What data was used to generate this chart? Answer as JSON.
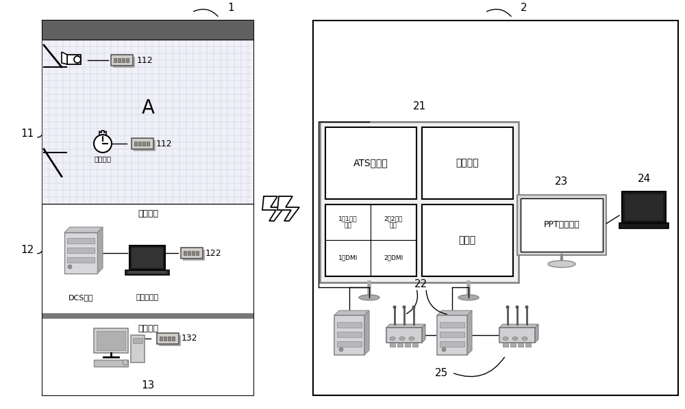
{
  "bg_color": "#ffffff",
  "label1": "1",
  "label2": "2",
  "label11": "11",
  "label12": "12",
  "label13": "13",
  "label21": "21",
  "label22": "22",
  "label23": "23",
  "label24": "24",
  "label25": "25",
  "label112": "112",
  "label122": "122",
  "label132": "132",
  "text_A": "A",
  "text_timing_device": "计时设备",
  "text_control_center1": "控制中心",
  "text_control_center2": "控制中心",
  "text_DCS": "DCS机柜",
  "text_laptop": "拾包笔记本",
  "text_ATS": "ATS工作站",
  "text_distance": "两车距离",
  "text_cam1": "1车1号摄\n像头",
  "text_cam2": "2车2号摄\n像头",
  "text_DMI1": "1车DMI",
  "text_DMI2": "2车DMI",
  "text_timer": "计时器",
  "text_PPT": "PPT场景介绍",
  "grid_color": "#c8c8d8",
  "dark_bar_color": "#606060",
  "sep_bar_color": "#888888"
}
